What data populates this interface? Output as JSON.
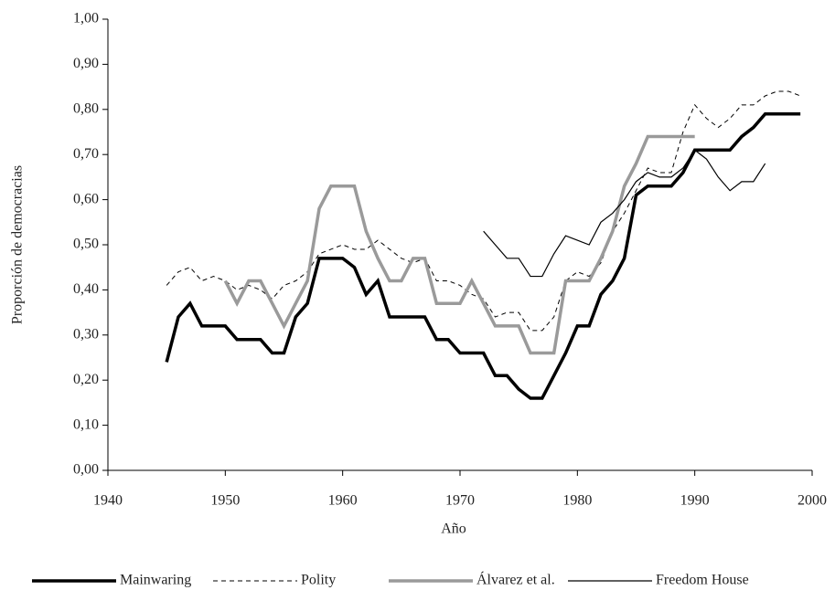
{
  "chart_data": {
    "type": "line",
    "x_label": "Año",
    "y_label": "Proporción de democracias",
    "xlim": [
      1940,
      2000
    ],
    "xticks": [
      1940,
      1950,
      1960,
      1970,
      1980,
      1990,
      2000
    ],
    "ylim": [
      0,
      1
    ],
    "yticks": [
      {
        "value": 0,
        "label": "0,00"
      },
      {
        "value": 0.1,
        "label": "0,10"
      },
      {
        "value": 0.2,
        "label": "0,20"
      },
      {
        "value": 0.3,
        "label": "0,30"
      },
      {
        "value": 0.4,
        "label": "0,40"
      },
      {
        "value": 0.5,
        "label": "0,50"
      },
      {
        "value": 0.6,
        "label": "0,60"
      },
      {
        "value": 0.7,
        "label": "0,70"
      },
      {
        "value": 0.8,
        "label": "0,80"
      },
      {
        "value": 0.9,
        "label": "0,90"
      },
      {
        "value": 1,
        "label": "1,00"
      }
    ],
    "grid": false,
    "legend": "bottom",
    "x": [
      1945,
      1946,
      1947,
      1948,
      1949,
      1950,
      1951,
      1952,
      1953,
      1954,
      1955,
      1956,
      1957,
      1958,
      1959,
      1960,
      1961,
      1962,
      1963,
      1964,
      1965,
      1966,
      1967,
      1968,
      1969,
      1970,
      1971,
      1972,
      1973,
      1974,
      1975,
      1976,
      1977,
      1978,
      1979,
      1980,
      1981,
      1982,
      1983,
      1984,
      1985,
      1986,
      1987,
      1988,
      1989,
      1990,
      1991,
      1992,
      1993,
      1994,
      1995,
      1996,
      1997,
      1998,
      1999
    ],
    "series": [
      {
        "name": "Mainwaring",
        "color": "#000000",
        "width": 3.5,
        "dash": "none",
        "values": [
          0.24,
          0.34,
          0.37,
          0.32,
          0.32,
          0.32,
          0.29,
          0.29,
          0.29,
          0.26,
          0.26,
          0.34,
          0.37,
          0.47,
          0.47,
          0.47,
          0.45,
          0.39,
          0.42,
          0.34,
          0.34,
          0.34,
          0.34,
          0.29,
          0.29,
          0.26,
          0.26,
          0.26,
          0.21,
          0.21,
          0.18,
          0.16,
          0.16,
          0.21,
          0.26,
          0.32,
          0.32,
          0.39,
          0.42,
          0.47,
          0.61,
          0.63,
          0.63,
          0.63,
          0.66,
          0.71,
          0.71,
          0.71,
          0.71,
          0.74,
          0.76,
          0.79,
          0.79,
          0.79,
          0.79
        ]
      },
      {
        "name": "Polity",
        "color": "#000000",
        "width": 1,
        "dash": "5 4",
        "values": [
          0.41,
          0.44,
          0.45,
          0.42,
          0.43,
          0.42,
          0.4,
          0.41,
          0.4,
          0.38,
          0.41,
          0.42,
          0.44,
          0.48,
          0.49,
          0.5,
          0.49,
          0.49,
          0.51,
          0.49,
          0.47,
          0.46,
          0.47,
          0.42,
          0.42,
          0.41,
          0.39,
          0.38,
          0.34,
          0.35,
          0.35,
          0.31,
          0.31,
          0.34,
          0.42,
          0.44,
          0.43,
          0.46,
          0.53,
          0.57,
          0.62,
          0.67,
          0.66,
          0.66,
          0.75,
          0.81,
          0.78,
          0.76,
          0.78,
          0.81,
          0.81,
          0.83,
          0.84,
          0.84,
          0.83
        ]
      },
      {
        "name": "Álvarez et al.",
        "color": "#9a9a9a",
        "width": 3.5,
        "dash": "none",
        "values": [
          null,
          null,
          null,
          null,
          null,
          0.42,
          0.37,
          0.42,
          0.42,
          0.37,
          0.32,
          0.37,
          0.42,
          0.58,
          0.63,
          0.63,
          0.63,
          0.53,
          0.47,
          0.42,
          0.42,
          0.47,
          0.47,
          0.37,
          0.37,
          0.37,
          0.42,
          0.37,
          0.32,
          0.32,
          0.32,
          0.26,
          0.26,
          0.26,
          0.42,
          0.42,
          0.42,
          0.47,
          0.53,
          0.63,
          0.68,
          0.74,
          0.74,
          0.74,
          0.74,
          0.74,
          null,
          null,
          null,
          null,
          null,
          null,
          null,
          null,
          null
        ]
      },
      {
        "name": "Freedom House",
        "color": "#000000",
        "width": 1.2,
        "dash": "none",
        "values": [
          null,
          null,
          null,
          null,
          null,
          null,
          null,
          null,
          null,
          null,
          null,
          null,
          null,
          null,
          null,
          null,
          null,
          null,
          null,
          null,
          null,
          null,
          null,
          null,
          null,
          null,
          null,
          0.53,
          0.5,
          0.47,
          0.47,
          0.43,
          0.43,
          0.48,
          0.52,
          0.51,
          0.5,
          0.55,
          0.57,
          0.6,
          0.64,
          0.66,
          0.65,
          0.65,
          0.67,
          0.71,
          0.69,
          0.65,
          0.62,
          0.64,
          0.64,
          0.68,
          null,
          null,
          null
        ]
      }
    ]
  }
}
